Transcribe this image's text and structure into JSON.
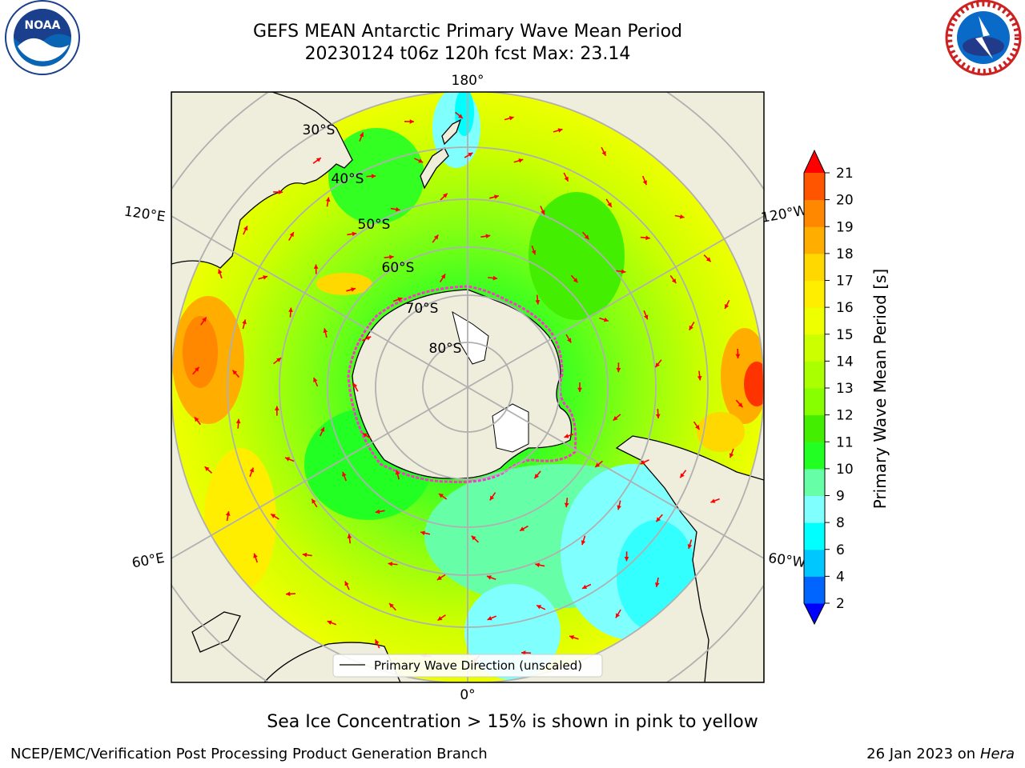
{
  "header": {
    "title_line1": "GEFS MEAN Antarctic Primary Wave Mean Period",
    "title_line2": "20230124 t06z 120h fcst   Max: 23.14"
  },
  "logos": {
    "left": "noara-logo",
    "right": "nws-logo"
  },
  "map": {
    "projection": "south-polar-stereographic",
    "longitude_labels": {
      "top": "180°",
      "bottom": "0°",
      "upper_left": "120°E",
      "upper_right": "120°W",
      "lower_left": "60°E",
      "lower_right": "60°W"
    },
    "latitude_labels": [
      "30°S",
      "40°S",
      "50°S",
      "60°S",
      "70°S",
      "80°S"
    ],
    "legend": "Primary Wave Direction (unscaled)",
    "arrow_color": "#ff0000",
    "land_color": "#efeedc"
  },
  "colorbar": {
    "label": "Primary Wave Mean Period [s]",
    "ticks": [
      "2",
      "4",
      "6",
      "8",
      "9",
      "10",
      "11",
      "12",
      "13",
      "14",
      "15",
      "16",
      "17",
      "18",
      "19",
      "20",
      "21"
    ],
    "colors": [
      "#0064ff",
      "#00c8ff",
      "#00ffff",
      "#80ffff",
      "#66ffa8",
      "#22ff22",
      "#44ee00",
      "#88ff00",
      "#aaff00",
      "#ccff00",
      "#eeff00",
      "#ffee00",
      "#ffd800",
      "#ffae00",
      "#ff8800",
      "#ff5500",
      "#ff2200"
    ],
    "extend_min_color": "#0000ff",
    "extend_max_color": "#ff0000"
  },
  "note": "Sea Ice Concentration > 15% is shown in pink to yellow",
  "footer": {
    "left": "NCEP/EMC/Verification Post Processing Product Generation Branch",
    "right_prefix": "26 Jan 2023 on ",
    "right_host": "Hera"
  }
}
